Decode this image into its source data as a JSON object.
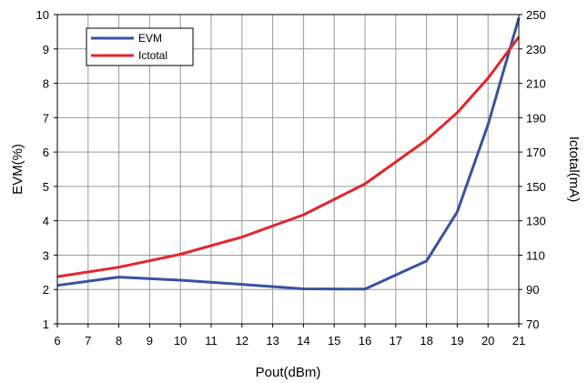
{
  "chart_data": {
    "type": "line",
    "title": "",
    "xlabel": "Pout(dBm)",
    "ylabel_left": "EVM(%)",
    "ylabel_right": "Ictotal(mA)",
    "xlim": [
      6,
      21
    ],
    "ylim_left": [
      1,
      10
    ],
    "ylim_right": [
      70,
      250
    ],
    "x_ticks": [
      "6",
      "7",
      "8",
      "9",
      "10",
      "11",
      "12",
      "13",
      "14",
      "15",
      "16",
      "17",
      "18",
      "19",
      "20",
      "21"
    ],
    "y_left_ticks": [
      "1",
      "2",
      "3",
      "4",
      "5",
      "6",
      "7",
      "8",
      "9",
      "10"
    ],
    "y_right_ticks": [
      "70",
      "90",
      "110",
      "130",
      "150",
      "170",
      "190",
      "210",
      "230",
      "250"
    ],
    "grid": true,
    "legend_position": "top-left",
    "series": [
      {
        "name": "EVM",
        "axis": "left",
        "color": "#3a52a0",
        "x": [
          6,
          8,
          10,
          12,
          14,
          16,
          18,
          19,
          20,
          21
        ],
        "y": [
          2.12,
          2.36,
          2.27,
          2.15,
          2.02,
          2.01,
          2.83,
          4.26,
          6.8,
          9.9
        ]
      },
      {
        "name": "Ictotal",
        "axis": "right",
        "color": "#e3262d",
        "x": [
          6,
          8,
          10,
          12,
          14,
          16,
          18,
          19,
          20,
          21
        ],
        "y": [
          97.5,
          103,
          110.5,
          120.5,
          133.5,
          151.5,
          177,
          193,
          213,
          237
        ]
      }
    ]
  }
}
